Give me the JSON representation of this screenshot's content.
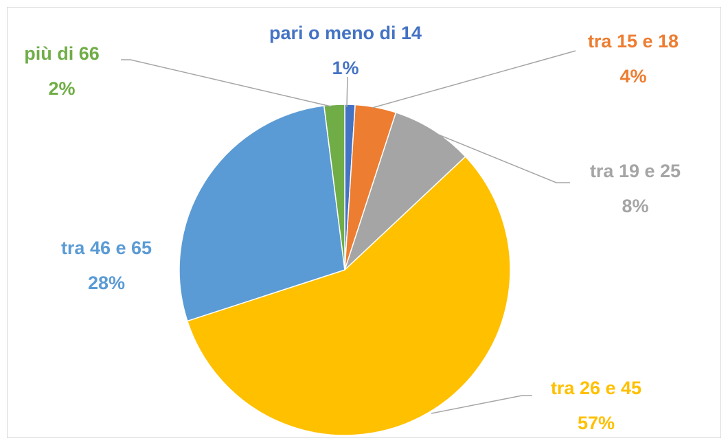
{
  "chart_data": {
    "type": "pie",
    "categories": [
      "pari o meno di 14",
      "tra 15 e 18",
      "tra 19 e 25",
      "tra 26 e 45",
      "tra 46 e 65",
      "più di 66"
    ],
    "values": [
      1,
      4,
      8,
      57,
      28,
      2
    ],
    "value_labels": [
      "1%",
      "4%",
      "8%",
      "57%",
      "28%",
      "2%"
    ],
    "colors": [
      "#4472c4",
      "#ed7d31",
      "#a5a5a5",
      "#ffc000",
      "#5b9bd5",
      "#70ad47"
    ]
  }
}
